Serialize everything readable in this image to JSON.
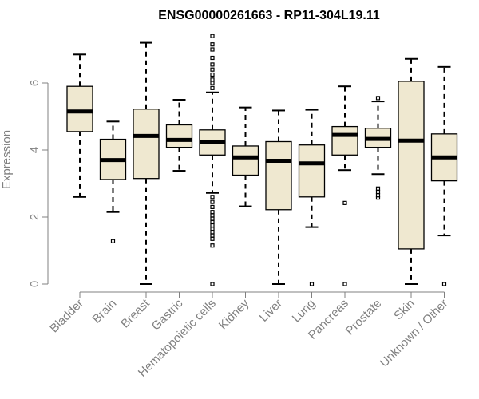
{
  "chart_data": {
    "type": "box",
    "title": "ENSG00000261663 - RP11-304L19.11",
    "xlabel": "",
    "ylabel": "Expression",
    "ylim": [
      0,
      7.4
    ],
    "yticks": [
      0,
      2,
      4,
      6
    ],
    "grid": false,
    "legend": "none",
    "box_fill": "#efe8d0",
    "categories": [
      "Bladder",
      "Brain",
      "Breast",
      "Gastric",
      "Hematopoietic cells",
      "Kidney",
      "Liver",
      "Lung",
      "Pancreas",
      "Prostate",
      "Skin",
      "Unknown / Other"
    ],
    "series": [
      {
        "category": "Bladder",
        "min": 2.6,
        "q1": 4.55,
        "median": 5.15,
        "q3": 5.9,
        "max": 6.85,
        "outliers": []
      },
      {
        "category": "Brain",
        "min": 2.15,
        "q1": 3.12,
        "median": 3.7,
        "q3": 4.32,
        "max": 4.85,
        "outliers": [
          1.28
        ]
      },
      {
        "category": "Breast",
        "min": 0.0,
        "q1": 3.15,
        "median": 4.42,
        "q3": 5.22,
        "max": 7.2,
        "outliers": []
      },
      {
        "category": "Gastric",
        "min": 3.38,
        "q1": 4.08,
        "median": 4.3,
        "q3": 4.75,
        "max": 5.5,
        "outliers": []
      },
      {
        "category": "Hematopoietic cells",
        "min": 2.72,
        "q1": 3.85,
        "median": 4.25,
        "q3": 4.6,
        "max": 5.72,
        "outliers": [
          0.0,
          1.15,
          1.35,
          1.45,
          1.55,
          1.65,
          1.75,
          1.85,
          1.95,
          2.05,
          2.15,
          2.3,
          2.45,
          2.6,
          5.85,
          6.0,
          6.1,
          6.25,
          6.4,
          6.55,
          6.75,
          7.0,
          7.15,
          7.4
        ]
      },
      {
        "category": "Kidney",
        "min": 2.32,
        "q1": 3.25,
        "median": 3.78,
        "q3": 4.12,
        "max": 5.27,
        "outliers": []
      },
      {
        "category": "Liver",
        "min": 0.0,
        "q1": 2.22,
        "median": 3.68,
        "q3": 4.25,
        "max": 5.18,
        "outliers": []
      },
      {
        "category": "Lung",
        "min": 1.7,
        "q1": 2.6,
        "median": 3.6,
        "q3": 4.15,
        "max": 5.2,
        "outliers": [
          0.0
        ]
      },
      {
        "category": "Pancreas",
        "min": 3.4,
        "q1": 3.85,
        "median": 4.45,
        "q3": 4.7,
        "max": 5.9,
        "outliers": [
          2.42,
          0.0
        ]
      },
      {
        "category": "Prostate",
        "min": 3.28,
        "q1": 4.08,
        "median": 4.33,
        "q3": 4.65,
        "max": 5.45,
        "outliers": [
          5.55,
          2.85,
          2.75,
          2.65,
          2.58
        ]
      },
      {
        "category": "Skin",
        "min": 0.0,
        "q1": 1.05,
        "median": 4.28,
        "q3": 6.05,
        "max": 6.72,
        "outliers": []
      },
      {
        "category": "Unknown / Other",
        "min": 1.45,
        "q1": 3.08,
        "median": 3.78,
        "q3": 4.48,
        "max": 6.48,
        "outliers": [
          0.0
        ]
      }
    ]
  }
}
